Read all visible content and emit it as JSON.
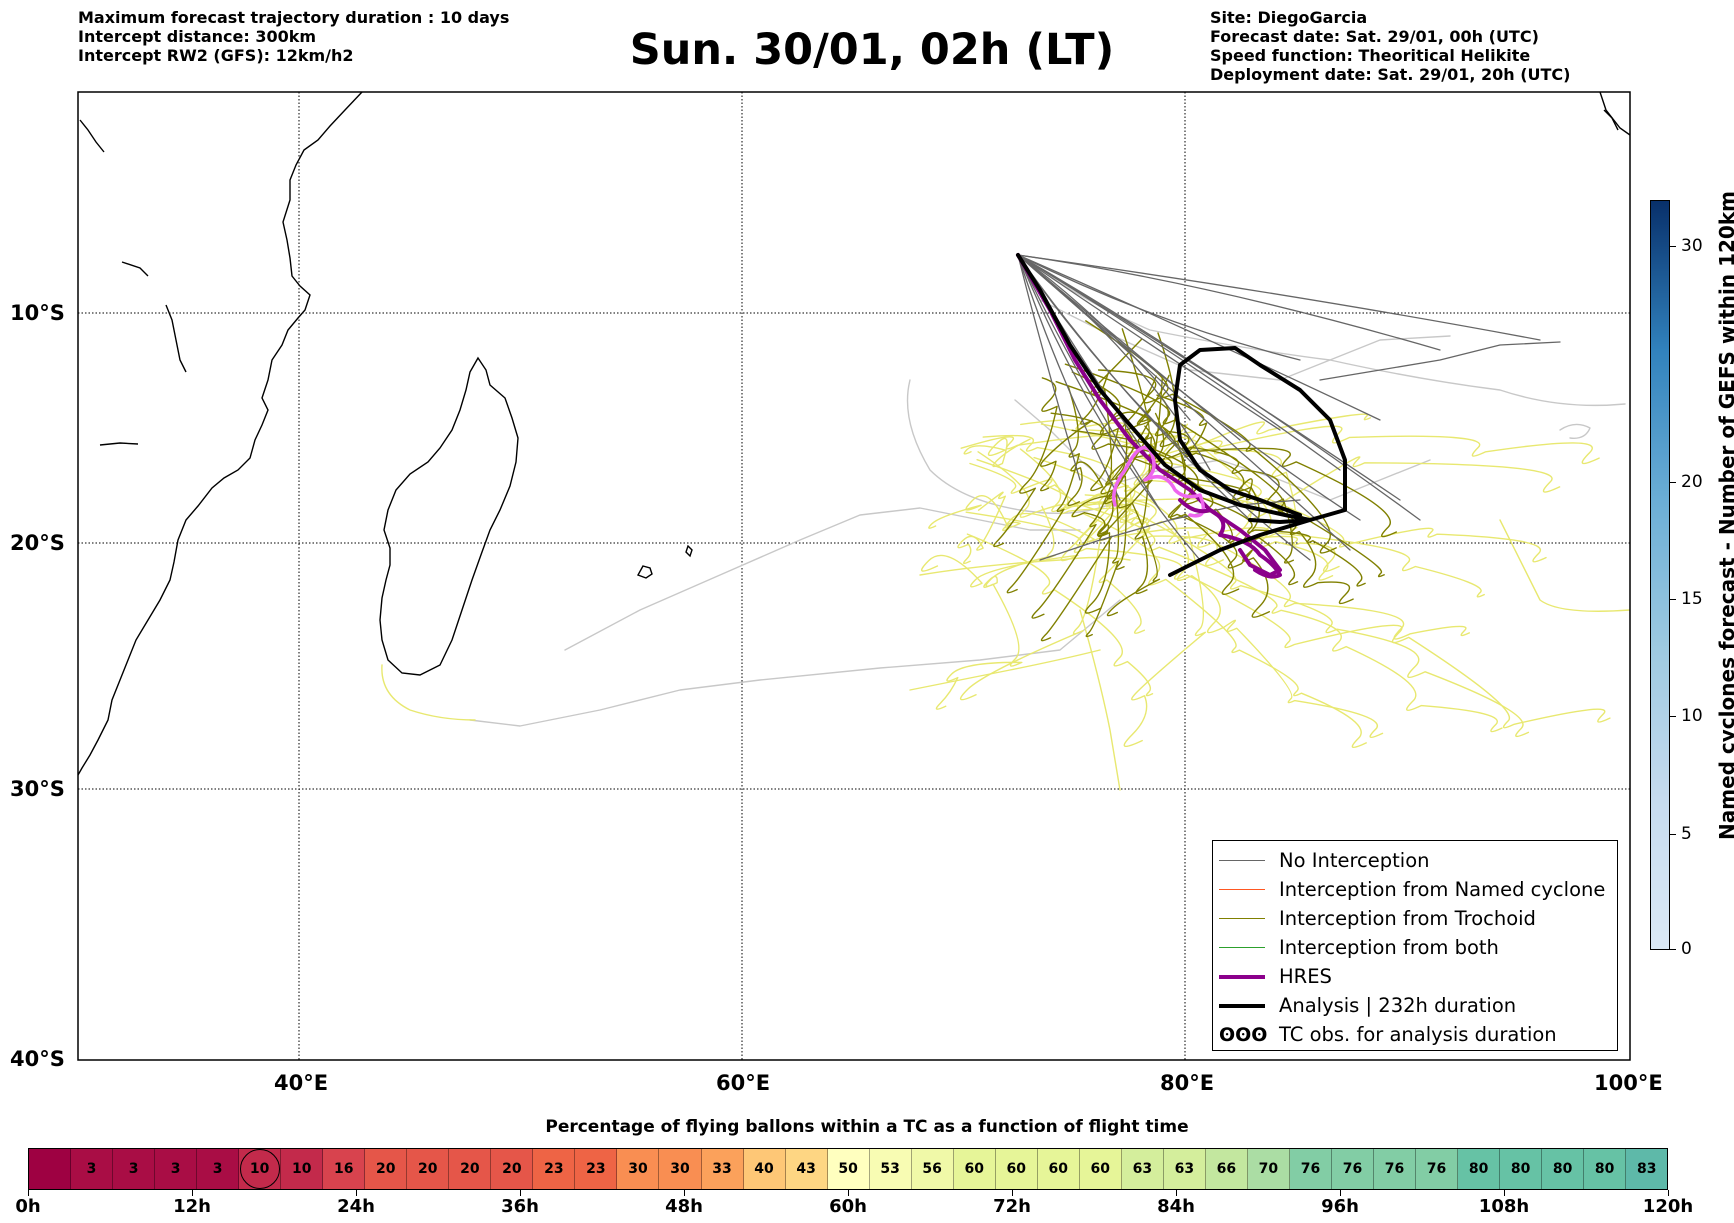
{
  "header": {
    "left": [
      "Maximum forecast trajectory duration : 10 days",
      "Intercept distance: 300km",
      "Intercept RW2 (GFS):  12km/h2"
    ],
    "title": "Sun. 30/01, 02h (LT)",
    "right": [
      "Site: DiegoGarcia",
      "Forecast date: Sat. 29/01, 00h (UTC)",
      "Speed function: Theoritical Helikite",
      "Deployment date: Sat. 29/01, 20h (UTC)"
    ]
  },
  "map": {
    "lat_labels": [
      "10°S",
      "20°S",
      "30°S",
      "40°S"
    ],
    "lon_labels": [
      "40°E",
      "60°E",
      "80°E",
      "100°E"
    ],
    "colors": {
      "no_interception": "#666666",
      "named_cyclone": "#ff5722",
      "trochoid": "#808000",
      "both": "#2ca02c",
      "hres": "#8b008b",
      "hres_light": "#ee66ee",
      "analysis": "#000000",
      "light_gray": "#c8c8c8",
      "yellow": "#e8e870"
    }
  },
  "legend": [
    {
      "label": "No Interception",
      "style": "thin-gray",
      "icon": "gray-line"
    },
    {
      "label": "Interception from Named cyclone",
      "style": "thin-orange",
      "icon": "orange-line"
    },
    {
      "label": "Interception from Trochoid",
      "style": "thin-olive",
      "icon": "olive-line"
    },
    {
      "label": "Interception from both",
      "style": "thin-green",
      "icon": "green-line"
    },
    {
      "label": "HRES",
      "style": "thick-purple",
      "icon": "purple-line"
    },
    {
      "label": "Analysis | 232h duration",
      "style": "thick-black",
      "icon": "black-line"
    },
    {
      "label": "TC obs. for analysis duration",
      "style": "cyclone-symbols",
      "icon": "cyclone-icon",
      "glyph": "ʘʘʘ"
    }
  ],
  "colorbar": {
    "label": "Named cyclones forecast - Number of GEFS within 120km",
    "ticks": [
      "0",
      "5",
      "10",
      "15",
      "20",
      "30"
    ]
  },
  "percent_bar": {
    "title": "Percentage of flying ballons within a TC as a function of flight time",
    "values": [
      "",
      "3",
      "3",
      "3",
      "3",
      "10",
      "10",
      "16",
      "20",
      "20",
      "20",
      "20",
      "23",
      "23",
      "30",
      "30",
      "33",
      "40",
      "43",
      "50",
      "53",
      "56",
      "60",
      "60",
      "60",
      "60",
      "63",
      "63",
      "66",
      "70",
      "76",
      "76",
      "76",
      "76",
      "80",
      "80",
      "80",
      "80",
      "83"
    ],
    "marked_value_index": 5,
    "hour_labels": [
      "0h",
      "12h",
      "24h",
      "36h",
      "48h",
      "60h",
      "72h",
      "84h",
      "96h",
      "108h",
      "120h"
    ]
  }
}
